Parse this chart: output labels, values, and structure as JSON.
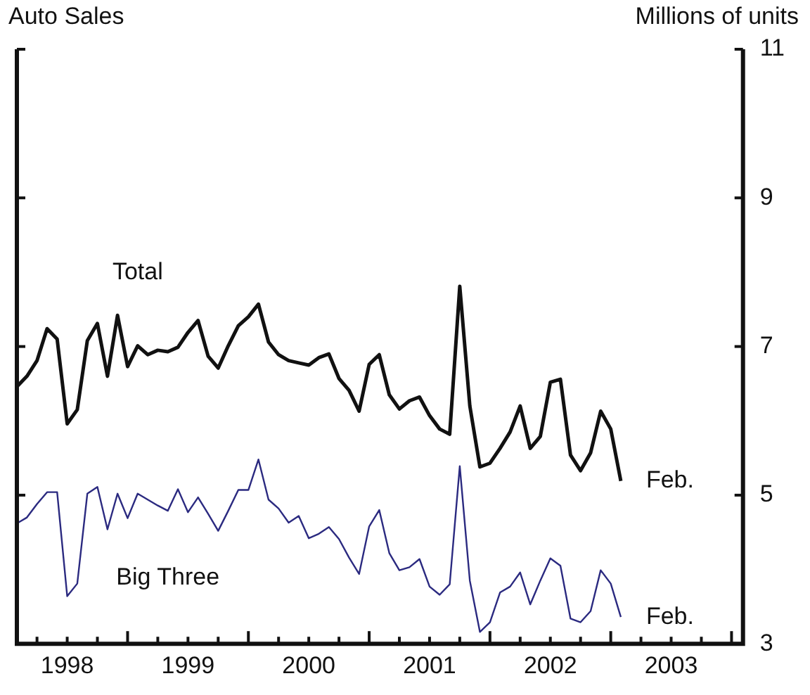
{
  "chart_data": {
    "type": "line",
    "title": "Auto Sales",
    "ylabel": "Millions of units",
    "x": [
      "1998-02",
      "1998-03",
      "1998-04",
      "1998-05",
      "1998-06",
      "1998-07",
      "1998-08",
      "1998-09",
      "1998-10",
      "1998-11",
      "1998-12",
      "1999-01",
      "1999-02",
      "1999-03",
      "1999-04",
      "1999-05",
      "1999-06",
      "1999-07",
      "1999-08",
      "1999-09",
      "1999-10",
      "1999-11",
      "1999-12",
      "2000-01",
      "2000-02",
      "2000-03",
      "2000-04",
      "2000-05",
      "2000-06",
      "2000-07",
      "2000-08",
      "2000-09",
      "2000-10",
      "2000-11",
      "2000-12",
      "2001-01",
      "2001-02",
      "2001-03",
      "2001-04",
      "2001-05",
      "2001-06",
      "2001-07",
      "2001-08",
      "2001-09",
      "2001-10",
      "2001-11",
      "2001-12",
      "2002-01",
      "2002-02",
      "2002-03",
      "2002-04",
      "2002-05",
      "2002-06",
      "2002-07",
      "2002-08",
      "2002-09",
      "2002-10",
      "2002-11",
      "2002-12",
      "2003-01",
      "2003-02"
    ],
    "series": [
      {
        "name": "Total",
        "color": "#111111",
        "values": [
          6.46,
          6.6,
          6.81,
          7.24,
          7.1,
          5.96,
          6.15,
          7.08,
          7.31,
          6.6,
          7.42,
          6.73,
          7.01,
          6.89,
          6.95,
          6.93,
          6.99,
          7.19,
          7.35,
          6.87,
          6.71,
          7.01,
          7.28,
          7.4,
          7.57,
          7.06,
          6.89,
          6.81,
          6.78,
          6.75,
          6.85,
          6.9,
          6.57,
          6.41,
          6.13,
          6.76,
          6.89,
          6.35,
          6.16,
          6.27,
          6.32,
          6.07,
          5.89,
          5.82,
          7.81,
          6.2,
          5.38,
          5.43,
          5.63,
          5.85,
          6.2,
          5.63,
          5.79,
          6.52,
          6.56,
          5.54,
          5.33,
          5.57,
          6.13,
          5.89,
          5.19
        ]
      },
      {
        "name": "Big Three",
        "color": "#2b2a80",
        "values": [
          4.62,
          4.7,
          4.88,
          5.04,
          5.04,
          3.64,
          3.81,
          5.02,
          5.11,
          4.54,
          5.02,
          4.69,
          5.02,
          4.94,
          4.86,
          4.79,
          5.08,
          4.77,
          4.97,
          4.75,
          4.52,
          4.79,
          5.07,
          5.07,
          5.48,
          4.94,
          4.82,
          4.63,
          4.72,
          4.42,
          4.48,
          4.57,
          4.41,
          4.16,
          3.94,
          4.58,
          4.8,
          4.22,
          3.99,
          4.03,
          4.14,
          3.77,
          3.66,
          3.8,
          5.39,
          3.85,
          3.16,
          3.29,
          3.69,
          3.77,
          3.96,
          3.53,
          3.85,
          4.15,
          4.05,
          3.34,
          3.29,
          3.44,
          3.99,
          3.81,
          3.36
        ]
      }
    ],
    "annotations": [
      {
        "text": "Feb.",
        "x": "2003-02",
        "y": 5.19
      },
      {
        "text": "Feb.",
        "x": "2003-02",
        "y": 3.36
      }
    ],
    "xlim": [
      "1998-02-01",
      "2004-02-05"
    ],
    "xticks": [
      {
        "value": "1998-04-01",
        "label": null
      },
      {
        "value": "1998-07-01",
        "label": "1998"
      },
      {
        "value": "1998-10-01",
        "label": null
      },
      {
        "value": "1999-01-01",
        "label": null
      },
      {
        "value": "1999-04-01",
        "label": null
      },
      {
        "value": "1999-07-01",
        "label": "1999"
      },
      {
        "value": "1999-10-01",
        "label": null
      },
      {
        "value": "2000-01-01",
        "label": null
      },
      {
        "value": "2000-04-01",
        "label": null
      },
      {
        "value": "2000-07-01",
        "label": "2000"
      },
      {
        "value": "2000-10-01",
        "label": null
      },
      {
        "value": "2001-01-01",
        "label": null
      },
      {
        "value": "2001-04-01",
        "label": null
      },
      {
        "value": "2001-07-01",
        "label": "2001"
      },
      {
        "value": "2001-10-01",
        "label": null
      },
      {
        "value": "2002-01-01",
        "label": null
      },
      {
        "value": "2002-04-01",
        "label": null
      },
      {
        "value": "2002-07-01",
        "label": "2002"
      },
      {
        "value": "2002-10-01",
        "label": null
      },
      {
        "value": "2003-01-01",
        "label": null
      },
      {
        "value": "2003-04-01",
        "label": null
      },
      {
        "value": "2003-07-01",
        "label": "2003"
      },
      {
        "value": "2003-10-01",
        "label": null
      },
      {
        "value": "2004-01-01",
        "label": null
      }
    ],
    "ylim": [
      3,
      11
    ],
    "yticks": [
      3,
      5,
      7,
      9,
      11
    ],
    "grid": false,
    "legend": false,
    "marker": "none",
    "line_style": "solid"
  }
}
